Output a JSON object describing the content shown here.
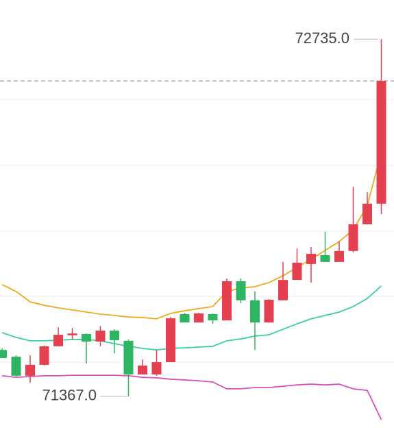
{
  "chart_data": {
    "type": "candlestick",
    "ylim": [
      71246,
      72885
    ],
    "up_color": "#e5404f",
    "down_color": "#2db562",
    "open": [
      71545,
      71519,
      71446,
      71488,
      71559,
      71601,
      71606,
      71577,
      71619,
      71580,
      71451,
      71451,
      71498,
      71682,
      71650,
      71682,
      71658,
      71808,
      71735,
      71650,
      71735,
      71813,
      71874,
      71908,
      71882,
      71924,
      72026,
      72105
    ],
    "close": [
      71514,
      71446,
      71488,
      71559,
      71603,
      71608,
      71577,
      71619,
      71582,
      71451,
      71485,
      71498,
      71666,
      71650,
      71685,
      71658,
      71808,
      71735,
      71650,
      71737,
      71813,
      71879,
      71913,
      71882,
      71924,
      72026,
      72105,
      72575
    ],
    "high": [
      71551,
      71524,
      71524,
      71562,
      71632,
      71629,
      71608,
      71637,
      71624,
      71585,
      71509,
      71545,
      71671,
      71687,
      71687,
      71685,
      71819,
      71819,
      71769,
      71740,
      71882,
      71934,
      71939,
      71997,
      71960,
      72170,
      72149,
      72735
    ],
    "low": [
      71514,
      71440,
      71419,
      71485,
      71559,
      71585,
      71493,
      71559,
      71532,
      71367,
      71451,
      71446,
      71498,
      71650,
      71650,
      71645,
      71658,
      71724,
      71545,
      71650,
      71735,
      71813,
      71803,
      71882,
      71882,
      71918,
      72026,
      72065
    ],
    "lines": [
      {
        "color": "#f0a81c",
        "values": [
          71795,
          71769,
          71729,
          71716,
          71706,
          71698,
          71690,
          71682,
          71677,
          71671,
          71669,
          71664,
          71685,
          71695,
          71703,
          71711,
          71769,
          71782,
          71787,
          71803,
          71829,
          71861,
          71892,
          71926,
          71960,
          72005,
          72097,
          72302
        ]
      },
      {
        "color": "#3ccf9f",
        "values": [
          71611,
          71593,
          71580,
          71580,
          71582,
          71585,
          71585,
          71580,
          71569,
          71559,
          71551,
          71545,
          71551,
          71553,
          71556,
          71559,
          71580,
          71587,
          71598,
          71603,
          71624,
          71645,
          71664,
          71677,
          71690,
          71711,
          71742,
          71790
        ]
      },
      {
        "color": "#d94fb8",
        "values": [
          71446,
          71440,
          71443,
          71446,
          71446,
          71448,
          71448,
          71448,
          71448,
          71446,
          71440,
          71438,
          71433,
          71430,
          71427,
          71422,
          71396,
          71396,
          71401,
          71401,
          71406,
          71411,
          71414,
          71411,
          71414,
          71396,
          71390,
          71278
        ]
      }
    ],
    "annotations": [
      {
        "label": "72735.0",
        "value": 72735
      },
      {
        "label": "71367.0",
        "value": 71367
      }
    ]
  }
}
